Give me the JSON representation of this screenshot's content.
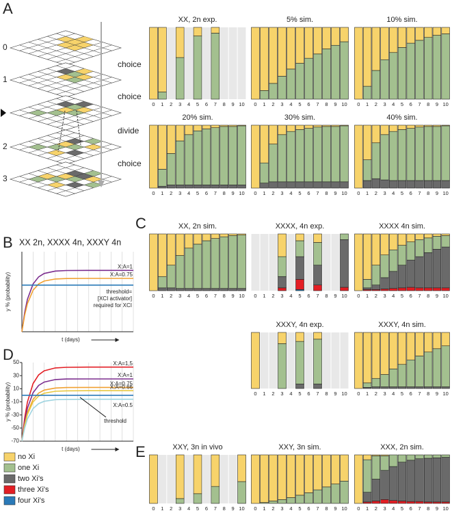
{
  "panel_labels": [
    "A",
    "B",
    "C",
    "D",
    "E"
  ],
  "diagram": {
    "levels": [
      "0",
      "1",
      "2",
      "3"
    ],
    "steps": [
      "choice",
      "choice",
      "divide",
      "choice"
    ]
  },
  "legend": [
    {
      "label": "no Xi",
      "color": "#f7d36b"
    },
    {
      "label": "one Xi",
      "color": "#a3c08f"
    },
    {
      "label": "two Xi's",
      "color": "#6a6a6a"
    },
    {
      "label": "three Xi's",
      "color": "#e31e24"
    },
    {
      "label": "four Xi's",
      "color": "#2a7ab8"
    }
  ],
  "chart_data": [
    {
      "type": "stacked_bar",
      "title": "XX, 2n exp.",
      "ylim": [
        0,
        100
      ],
      "categories": [
        "0",
        "1",
        "2",
        "3",
        "4",
        "5",
        "6",
        "7",
        "8",
        "9",
        "10"
      ],
      "series": [
        {
          "color": "#a3c08f",
          "values": [
            0,
            10,
            null,
            58,
            null,
            88,
            null,
            92,
            null,
            null,
            null
          ]
        },
        {
          "color": "#f7d36b",
          "values": [
            100,
            90,
            null,
            42,
            null,
            12,
            null,
            8,
            null,
            null,
            null
          ]
        }
      ]
    },
    {
      "type": "stacked_bar",
      "title": "5% sim.",
      "ylim": [
        0,
        100
      ],
      "categories": [
        "0",
        "1",
        "2",
        "3",
        "4",
        "5",
        "6",
        "7",
        "8",
        "9",
        "10"
      ],
      "series": [
        {
          "color": "#a3c08f",
          "values": [
            0,
            12,
            22,
            32,
            42,
            50,
            57,
            63,
            70,
            75,
            80
          ]
        },
        {
          "color": "#f7d36b",
          "values": [
            100,
            88,
            78,
            68,
            58,
            50,
            43,
            37,
            30,
            25,
            20
          ]
        }
      ]
    },
    {
      "type": "stacked_bar",
      "title": "10% sim.",
      "ylim": [
        0,
        100
      ],
      "categories": [
        "0",
        "1",
        "2",
        "3",
        "4",
        "5",
        "6",
        "7",
        "8",
        "9",
        "10"
      ],
      "series": [
        {
          "color": "#a3c08f",
          "values": [
            0,
            18,
            40,
            55,
            65,
            72,
            78,
            82,
            86,
            89,
            91
          ]
        },
        {
          "color": "#f7d36b",
          "values": [
            100,
            82,
            60,
            45,
            35,
            28,
            22,
            18,
            14,
            11,
            9
          ]
        }
      ]
    },
    {
      "type": "stacked_bar",
      "title": "20% sim.",
      "ylim": [
        0,
        100
      ],
      "categories": [
        "0",
        "1",
        "2",
        "3",
        "4",
        "5",
        "6",
        "7",
        "8",
        "9",
        "10"
      ],
      "series": [
        {
          "color": "#6a6a6a",
          "values": [
            0,
            3,
            5,
            5,
            5,
            5,
            5,
            5,
            5,
            5,
            5
          ]
        },
        {
          "color": "#a3c08f",
          "values": [
            0,
            27,
            50,
            70,
            80,
            86,
            89,
            91,
            93,
            93,
            94
          ]
        },
        {
          "color": "#f7d36b",
          "values": [
            100,
            70,
            45,
            25,
            15,
            9,
            6,
            4,
            2,
            2,
            1
          ]
        }
      ]
    },
    {
      "type": "stacked_bar",
      "title": "30% sim.",
      "ylim": [
        0,
        100
      ],
      "categories": [
        "0",
        "1",
        "2",
        "3",
        "4",
        "5",
        "6",
        "7",
        "8",
        "9",
        "10"
      ],
      "series": [
        {
          "color": "#6a6a6a",
          "values": [
            0,
            8,
            10,
            10,
            10,
            10,
            10,
            10,
            10,
            10,
            10
          ]
        },
        {
          "color": "#a3c08f",
          "values": [
            0,
            32,
            60,
            75,
            80,
            83,
            85,
            87,
            88,
            88,
            89
          ]
        },
        {
          "color": "#f7d36b",
          "values": [
            100,
            60,
            30,
            15,
            10,
            7,
            5,
            3,
            2,
            2,
            1
          ]
        }
      ]
    },
    {
      "type": "stacked_bar",
      "title": "40% sim.",
      "ylim": [
        0,
        100
      ],
      "categories": [
        "0",
        "1",
        "2",
        "3",
        "4",
        "5",
        "6",
        "7",
        "8",
        "9",
        "10"
      ],
      "series": [
        {
          "color": "#6a6a6a",
          "values": [
            0,
            12,
            15,
            13,
            12,
            12,
            12,
            12,
            12,
            12,
            12
          ]
        },
        {
          "color": "#a3c08f",
          "values": [
            0,
            33,
            57,
            72,
            78,
            81,
            83,
            85,
            86,
            86,
            87
          ]
        },
        {
          "color": "#f7d36b",
          "values": [
            100,
            55,
            28,
            15,
            10,
            7,
            5,
            3,
            2,
            2,
            1
          ]
        }
      ]
    },
    {
      "type": "stacked_bar",
      "title": "XX, 2n sim.",
      "ylim": [
        0,
        100
      ],
      "categories": [
        "0",
        "1",
        "2",
        "3",
        "4",
        "5",
        "6",
        "7",
        "8",
        "9",
        "10"
      ],
      "series": [
        {
          "color": "#6a6a6a",
          "values": [
            0,
            5,
            5,
            4,
            4,
            4,
            4,
            4,
            4,
            4,
            4
          ]
        },
        {
          "color": "#a3c08f",
          "values": [
            0,
            20,
            40,
            58,
            71,
            78,
            84,
            88,
            91,
            93,
            94
          ]
        },
        {
          "color": "#f7d36b",
          "values": [
            100,
            75,
            55,
            38,
            25,
            18,
            12,
            8,
            5,
            3,
            2
          ]
        }
      ]
    },
    {
      "type": "stacked_bar",
      "title": "XXXX, 4n exp.",
      "ylim": [
        0,
        100
      ],
      "categories": [
        "0",
        "1",
        "2",
        "3",
        "4",
        "5",
        "6",
        "7",
        "8",
        "9",
        "10"
      ],
      "series": [
        {
          "color": "#2a7ab8",
          "values": [
            null,
            null,
            null,
            0,
            null,
            2,
            null,
            0,
            null,
            null,
            0
          ]
        },
        {
          "color": "#e31e24",
          "values": [
            null,
            null,
            null,
            5,
            null,
            18,
            null,
            10,
            null,
            null,
            6
          ]
        },
        {
          "color": "#6a6a6a",
          "values": [
            null,
            null,
            null,
            20,
            null,
            40,
            null,
            35,
            null,
            null,
            84
          ]
        },
        {
          "color": "#a3c08f",
          "values": [
            null,
            null,
            null,
            35,
            null,
            28,
            null,
            40,
            null,
            null,
            10
          ]
        },
        {
          "color": "#f7d36b",
          "values": [
            null,
            null,
            null,
            40,
            null,
            12,
            null,
            15,
            null,
            null,
            0
          ]
        }
      ]
    },
    {
      "type": "stacked_bar",
      "title": "XXXX 4n sim.",
      "ylim": [
        0,
        100
      ],
      "categories": [
        "0",
        "1",
        "2",
        "3",
        "4",
        "5",
        "6",
        "7",
        "8",
        "9",
        "10"
      ],
      "series": [
        {
          "color": "#e31e24",
          "values": [
            0,
            2,
            2,
            3,
            4,
            5,
            6,
            5,
            5,
            5,
            5
          ]
        },
        {
          "color": "#6a6a6a",
          "values": [
            0,
            3,
            8,
            20,
            30,
            40,
            48,
            55,
            62,
            68,
            72
          ]
        },
        {
          "color": "#a3c08f",
          "values": [
            0,
            15,
            35,
            40,
            38,
            35,
            32,
            30,
            26,
            23,
            20
          ]
        },
        {
          "color": "#f7d36b",
          "values": [
            100,
            80,
            55,
            37,
            28,
            20,
            14,
            10,
            7,
            4,
            3
          ]
        }
      ]
    },
    {
      "type": "stacked_bar",
      "title": "XXXY, 4n exp.",
      "ylim": [
        0,
        100
      ],
      "categories": [
        "0",
        "1",
        "2",
        "3",
        "4",
        "5",
        "6",
        "7",
        "8",
        "9",
        "10"
      ],
      "series": [
        {
          "color": "#6a6a6a",
          "values": [
            0,
            null,
            null,
            0,
            null,
            8,
            null,
            8,
            null,
            null,
            null
          ]
        },
        {
          "color": "#a3c08f",
          "values": [
            0,
            null,
            null,
            80,
            null,
            76,
            null,
            80,
            null,
            null,
            null
          ]
        },
        {
          "color": "#f7d36b",
          "values": [
            100,
            null,
            null,
            20,
            null,
            16,
            null,
            12,
            null,
            null,
            null
          ]
        }
      ]
    },
    {
      "type": "stacked_bar",
      "title": "XXXY, 4n sim.",
      "ylim": [
        0,
        100
      ],
      "categories": [
        "0",
        "1",
        "2",
        "3",
        "4",
        "5",
        "6",
        "7",
        "8",
        "9",
        "10"
      ],
      "series": [
        {
          "color": "#6a6a6a",
          "values": [
            0,
            2,
            3,
            3,
            3,
            3,
            3,
            3,
            3,
            3,
            3
          ]
        },
        {
          "color": "#a3c08f",
          "values": [
            0,
            8,
            15,
            22,
            32,
            40,
            48,
            55,
            62,
            68,
            73
          ]
        },
        {
          "color": "#f7d36b",
          "values": [
            100,
            90,
            82,
            75,
            65,
            57,
            49,
            42,
            35,
            29,
            24
          ]
        }
      ]
    },
    {
      "type": "stacked_bar",
      "title": "XXY, 3n in vivo",
      "ylim": [
        0,
        100
      ],
      "categories": [
        "0",
        "1",
        "2",
        "3",
        "4",
        "5",
        "6",
        "7",
        "8",
        "9",
        "10"
      ],
      "series": [
        {
          "color": "#a3c08f",
          "values": [
            0,
            null,
            null,
            10,
            null,
            20,
            null,
            35,
            null,
            null,
            45
          ]
        },
        {
          "color": "#f7d36b",
          "values": [
            100,
            null,
            null,
            90,
            null,
            80,
            null,
            65,
            null,
            null,
            55
          ]
        }
      ]
    },
    {
      "type": "stacked_bar",
      "title": "XXY, 3n sim.",
      "ylim": [
        0,
        100
      ],
      "categories": [
        "0",
        "1",
        "2",
        "3",
        "4",
        "5",
        "6",
        "7",
        "8",
        "9",
        "10"
      ],
      "series": [
        {
          "color": "#a3c08f",
          "values": [
            0,
            2,
            5,
            8,
            12,
            17,
            22,
            28,
            34,
            40,
            46
          ]
        },
        {
          "color": "#f7d36b",
          "values": [
            100,
            98,
            95,
            92,
            88,
            83,
            78,
            72,
            66,
            60,
            54
          ]
        }
      ]
    },
    {
      "type": "stacked_bar",
      "title": "XXX, 2n sim.",
      "ylim": [
        0,
        100
      ],
      "categories": [
        "0",
        "1",
        "2",
        "3",
        "4",
        "5",
        "6",
        "7",
        "8",
        "9",
        "10"
      ],
      "series": [
        {
          "color": "#e31e24",
          "values": [
            0,
            3,
            5,
            8,
            6,
            5,
            4,
            4,
            3,
            3,
            3
          ]
        },
        {
          "color": "#6a6a6a",
          "values": [
            0,
            20,
            45,
            60,
            70,
            80,
            85,
            88,
            90,
            91,
            92
          ]
        },
        {
          "color": "#a3c08f",
          "values": [
            0,
            67,
            48,
            30,
            24,
            15,
            11,
            8,
            7,
            6,
            5
          ]
        },
        {
          "color": "#f7d36b",
          "values": [
            100,
            10,
            2,
            2,
            0,
            0,
            0,
            0,
            0,
            0,
            0
          ]
        }
      ]
    },
    {
      "type": "line",
      "title": "XX 2n, XXXX 4n, XXXY 4n",
      "ylabel": "y % (probability)",
      "xlabel": "t (days)",
      "xlim": [
        0,
        10
      ],
      "ylim": [
        -70,
        50
      ],
      "x": [
        0,
        0.25,
        0.5,
        1,
        1.5,
        2,
        3,
        4,
        6,
        8,
        10
      ],
      "series": [
        {
          "name": "X:A=1",
          "color": "#7b2d8e",
          "values": [
            -70,
            -41.2,
            -21.4,
            1.5,
            12.3,
            17.4,
            21,
            21.8,
            22,
            22,
            22
          ]
        },
        {
          "name": "X:A=0.75",
          "color": "#f0a030",
          "values": [
            -70,
            -45,
            -27.8,
            -7.8,
            1.6,
            6,
            9.1,
            9.8,
            10,
            10,
            10
          ]
        },
        {
          "color": "#2a7ab8",
          "values": [
            0,
            0,
            0,
            0,
            0,
            0,
            0,
            0,
            0,
            0,
            0
          ]
        }
      ],
      "annotations": [
        "threshold=",
        "[XCI activator]",
        "required for XCI"
      ]
    },
    {
      "type": "line",
      "ylabel": "y % (probability)",
      "xlabel": "t (days)",
      "xlim": [
        0,
        10
      ],
      "ylim": [
        -70,
        50
      ],
      "yticks": [
        50,
        30,
        10,
        -10,
        -30,
        -50,
        -70
      ],
      "x": [
        0,
        0.25,
        0.5,
        1,
        1.5,
        2,
        3,
        4,
        6,
        8,
        10
      ],
      "series": [
        {
          "name": "X:A=1,5",
          "color": "#e31e24",
          "values": [
            -70,
            -34.6,
            -10.3,
            17.8,
            31.1,
            37.4,
            41.8,
            42.7,
            43,
            43,
            43
          ]
        },
        {
          "name": "X:A=1",
          "color": "#7b2d8e",
          "values": [
            -70,
            -40.3,
            -19.8,
            3.8,
            15,
            20.2,
            24,
            24.8,
            25,
            25,
            25
          ]
        },
        {
          "name": "X:A=0.75",
          "color": "#f0a030",
          "values": [
            -70,
            -44.3,
            -26.7,
            -6.3,
            3.4,
            7.9,
            11.1,
            11.8,
            12,
            12,
            12
          ]
        },
        {
          "name": "X:A=0.66",
          "color": "#e8c840",
          "values": [
            -70,
            -45.9,
            -29.3,
            -10.2,
            -1.1,
            3.2,
            6.2,
            6.8,
            7,
            7,
            7
          ]
        },
        {
          "color": "#2a7ab8",
          "values": [
            0,
            0,
            0,
            0,
            0,
            0,
            0,
            0,
            0,
            0,
            0
          ]
        },
        {
          "name": "X:A=0.5",
          "color": "#9fd4e0",
          "values": [
            -70,
            -50,
            -36.2,
            -20.3,
            -12.7,
            -9.2,
            -6.7,
            -6.2,
            -6,
            -6,
            -6
          ]
        }
      ],
      "annotations": [
        "threshold"
      ]
    }
  ]
}
